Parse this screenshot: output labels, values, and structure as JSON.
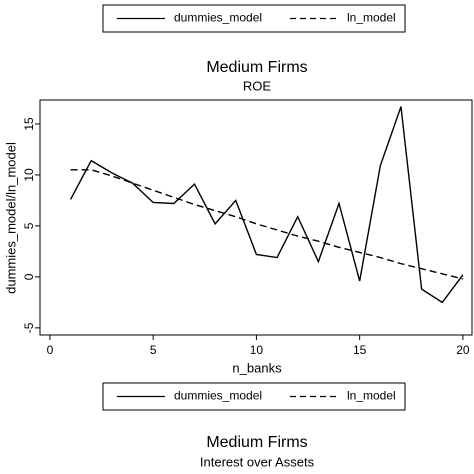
{
  "chart_data": [
    {
      "type": "legend",
      "series": [
        {
          "name": "dummies_model",
          "color": "#000000",
          "dash": false
        },
        {
          "name": "ln_model",
          "color": "#000000",
          "dash": true
        }
      ]
    },
    {
      "type": "line",
      "title": "Medium Firms",
      "subtitle": "ROE",
      "x_label": "n_banks",
      "y_label": "dummies_model/ln_model",
      "x": [
        1,
        2,
        3,
        4,
        5,
        6,
        7,
        8,
        9,
        10,
        11,
        12,
        13,
        14,
        15,
        16,
        17,
        18,
        19,
        20
      ],
      "series": [
        {
          "name": "dummies_model",
          "color": "#000000",
          "dash": false,
          "values": [
            7.6,
            11.4,
            10.2,
            9.2,
            7.3,
            7.2,
            9.1,
            5.2,
            7.5,
            2.2,
            1.9,
            5.9,
            1.5,
            7.2,
            -0.4,
            10.9,
            16.7,
            -1.2,
            -2.5,
            0.2
          ]
        },
        {
          "name": "ln_model",
          "color": "#000000",
          "dash": true,
          "values": [
            10.5,
            10.5,
            9.9,
            9.2,
            8.5,
            7.8,
            7.1,
            6.5,
            5.9,
            5.2,
            4.6,
            4.0,
            3.5,
            2.9,
            2.4,
            1.9,
            1.3,
            0.8,
            0.3,
            -0.2
          ]
        }
      ],
      "xlim": [
        -0.48,
        20.44
      ],
      "ylim": [
        -5.7,
        17.35
      ],
      "xticks": [
        0,
        5,
        10,
        15,
        20
      ],
      "yticks": [
        -5,
        0,
        5,
        10,
        15
      ],
      "grid": false
    },
    {
      "type": "line",
      "title": "Medium Firms",
      "subtitle": "Interest over Assets"
    }
  ]
}
